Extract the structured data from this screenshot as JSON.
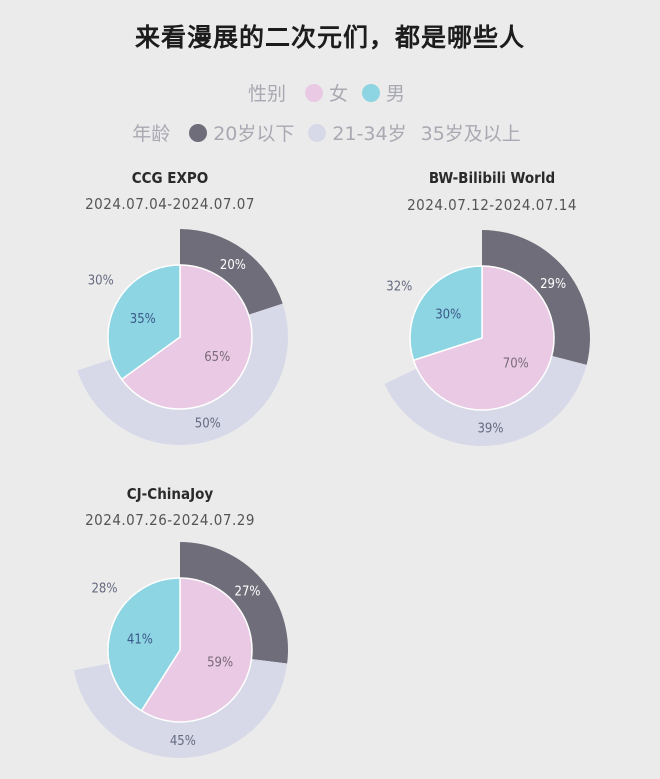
{
  "title": "来看漫展的二次元们，都是哪些人",
  "legend": {
    "gender_title": "性别",
    "gender_items": [
      {
        "label": "女",
        "color": "#e9c9e3"
      },
      {
        "label": "男",
        "color": "#8dd5e2"
      }
    ],
    "age_title": "年龄",
    "age_items": [
      {
        "label": "20岁以下",
        "color": "#6f6d79"
      },
      {
        "label": "21-34岁",
        "color": "#d7d9e8"
      },
      {
        "label": "35岁及以上",
        "color": "#ebebeb"
      }
    ]
  },
  "chart_data": [
    {
      "type": "pie",
      "title": "CCG EXPO",
      "subtitle": "2024.07.04-2024.07.07",
      "inner": {
        "values": [
          65,
          35
        ],
        "labels": [
          "65%",
          "35%"
        ]
      },
      "outer": {
        "values": [
          20,
          50,
          30
        ],
        "labels": [
          "20%",
          "50%",
          "30%"
        ]
      }
    },
    {
      "type": "pie",
      "title": "BW-Bilibili World",
      "subtitle": "2024.07.12-2024.07.14",
      "inner": {
        "values": [
          70,
          30
        ],
        "labels": [
          "70%",
          "30%"
        ]
      },
      "outer": {
        "values": [
          29,
          39,
          32
        ],
        "labels": [
          "29%",
          "39%",
          "32%"
        ]
      }
    },
    {
      "type": "pie",
      "title": "CJ-ChinaJoy",
      "subtitle": "2024.07.26-2024.07.29",
      "inner": {
        "values": [
          59,
          41
        ],
        "labels": [
          "59%",
          "41%"
        ]
      },
      "outer": {
        "values": [
          27,
          45,
          28
        ],
        "labels": [
          "27%",
          "45%",
          "28%"
        ]
      }
    }
  ]
}
